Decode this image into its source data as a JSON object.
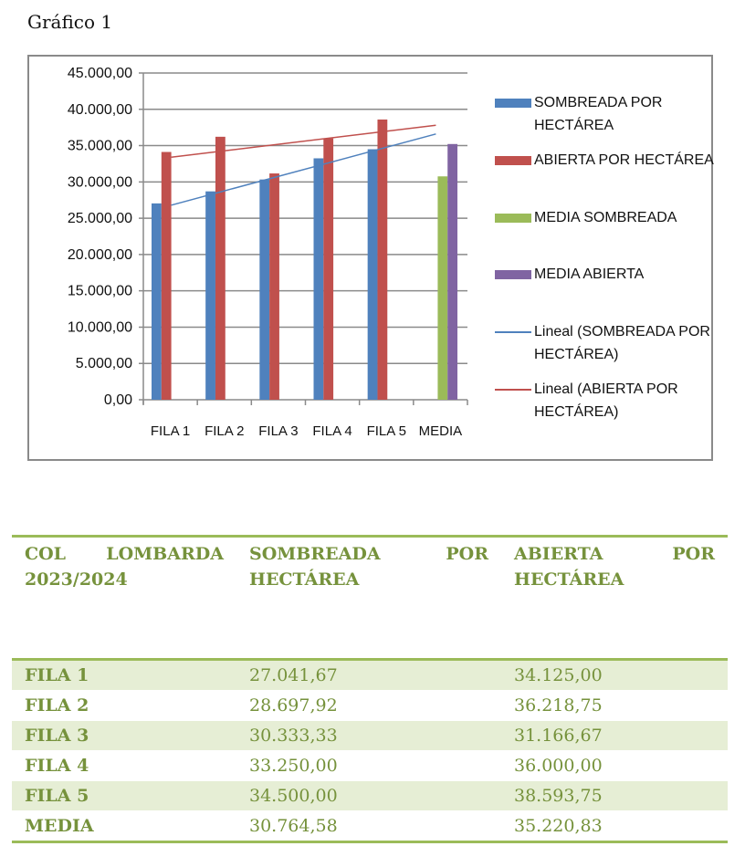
{
  "page_title": "Gráfico 1",
  "chart_data": {
    "type": "bar",
    "title": "",
    "xlabel": "",
    "ylabel": "",
    "ylim": [
      0,
      45000
    ],
    "yticks": [
      0,
      5000,
      10000,
      15000,
      20000,
      25000,
      30000,
      35000,
      40000,
      45000
    ],
    "ytick_labels": [
      "0,00",
      "5.000,00",
      "10.000,00",
      "15.000,00",
      "20.000,00",
      "25.000,00",
      "30.000,00",
      "35.000,00",
      "40.000,00",
      "45.000,00"
    ],
    "categories": [
      "FILA 1",
      "FILA 2",
      "FILA 3",
      "FILA 4",
      "FILA 5",
      "MEDIA"
    ],
    "grid": true,
    "legend_position": "right",
    "series": [
      {
        "name": "SOMBREADA POR HECTÁREA",
        "color": "#4f81bd",
        "values": [
          27041.67,
          28697.92,
          30333.33,
          33250.0,
          34500.0,
          null
        ]
      },
      {
        "name": "ABIERTA POR HECTÁREA",
        "color": "#c0504d",
        "values": [
          34125.0,
          36218.75,
          31166.67,
          36000.0,
          38593.75,
          null
        ]
      },
      {
        "name": "MEDIA SOMBREADA",
        "color": "#9bbb59",
        "values": [
          null,
          null,
          null,
          null,
          null,
          30764.58
        ]
      },
      {
        "name": "MEDIA ABIERTA",
        "color": "#8064a2",
        "values": [
          null,
          null,
          null,
          null,
          null,
          35220.83
        ]
      }
    ],
    "trendlines": [
      {
        "name": "Lineal (SOMBREADA POR HECTÁREA)",
        "color": "#4f81bd",
        "start": 26800,
        "end": 36600
      },
      {
        "name": "Lineal (ABIERTA POR HECTÁREA)",
        "color": "#c0504d",
        "start": 33400,
        "end": 37800
      }
    ]
  },
  "table": {
    "headers": [
      "COL LOMBARDA 2023/2024",
      "SOMBREADA POR HECTÁREA",
      "ABIERTA POR HECTÁREA"
    ],
    "rows": [
      [
        "FILA 1",
        "27.041,67",
        "34.125,00"
      ],
      [
        "FILA 2",
        "28.697,92",
        "36.218,75"
      ],
      [
        "FILA 3",
        "30.333,33",
        "31.166,67"
      ],
      [
        "FILA 4",
        "33.250,00",
        "36.000,00"
      ],
      [
        "FILA 5",
        "34.500,00",
        "38.593,75"
      ],
      [
        "MEDIA",
        "30.764,58",
        "35.220,83"
      ]
    ]
  }
}
